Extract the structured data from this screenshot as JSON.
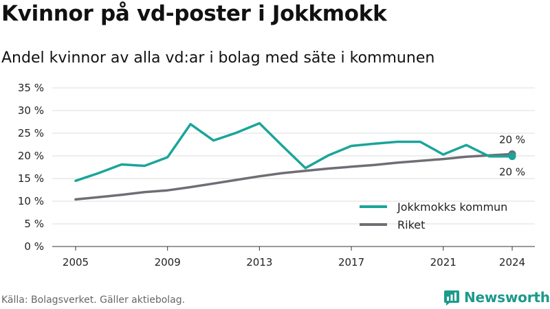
{
  "title": "Kvinnor på vd-poster i Jokkmokk",
  "subtitle": "Andel kvinnor av alla vd:ar i bolag med säte i kommunen",
  "source": "Källa: Bolagsverket. Gäller aktiebolag.",
  "brand": {
    "name": "Newsworthy",
    "color": "#1c9a8c",
    "icon": "newsworthy-logo-icon"
  },
  "chart_data": {
    "type": "line",
    "title": "",
    "xlabel": "",
    "ylabel": "",
    "ylim": [
      0,
      35
    ],
    "yticks": [
      0,
      5,
      10,
      15,
      20,
      25,
      30,
      35
    ],
    "ytick_labels": [
      "0 %",
      "5 %",
      "10 %",
      "15 %",
      "20 %",
      "25 %",
      "30 %",
      "35 %"
    ],
    "xlim": [
      2005,
      2024
    ],
    "xticks": [
      2005,
      2009,
      2013,
      2017,
      2021,
      2024
    ],
    "xtick_labels": [
      "2005",
      "2009",
      "2013",
      "2017",
      "2021",
      "2024"
    ],
    "grid": true,
    "legend_position": "bottom-right",
    "x": [
      2005,
      2006,
      2007,
      2008,
      2009,
      2010,
      2011,
      2012,
      2013,
      2014,
      2015,
      2016,
      2017,
      2018,
      2019,
      2020,
      2021,
      2022,
      2023,
      2024
    ],
    "series": [
      {
        "name": "Jokkmokks kommun",
        "color": "#1aa59a",
        "values": [
          14.5,
          16.2,
          18.1,
          17.8,
          19.7,
          27.0,
          23.4,
          25.1,
          27.2,
          22.2,
          17.3,
          20.1,
          22.2,
          22.7,
          23.1,
          23.1,
          20.3,
          22.4,
          19.9,
          19.9
        ],
        "end_label": "20 %"
      },
      {
        "name": "Riket",
        "color": "#6e6e74",
        "values": [
          10.4,
          10.9,
          11.4,
          12.0,
          12.4,
          13.1,
          13.9,
          14.7,
          15.5,
          16.2,
          16.7,
          17.2,
          17.6,
          18.0,
          18.5,
          18.9,
          19.3,
          19.8,
          20.1,
          20.4
        ],
        "end_label": "20 %"
      }
    ]
  }
}
